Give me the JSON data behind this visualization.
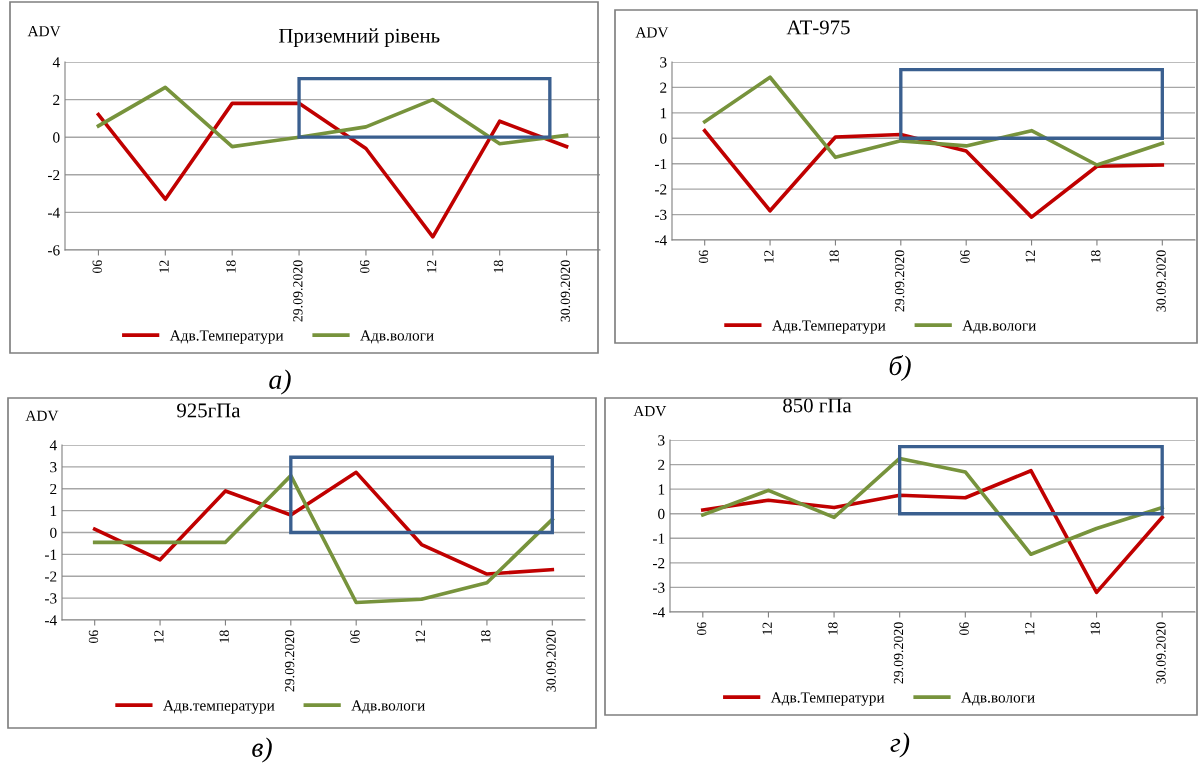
{
  "chart_data": [
    {
      "type": "line",
      "title": "Приземний рівень",
      "ylabel": "ADV",
      "categories": [
        "06",
        "12",
        "18",
        "29.09.2020",
        "06",
        "12",
        "18",
        "30.09.2020"
      ],
      "ylim": [
        -6,
        4
      ],
      "yticks": [
        -6,
        -4,
        -2,
        0,
        2,
        4
      ],
      "grid": "y",
      "legend": "bottom",
      "marker": "none",
      "line_style": "solid",
      "annotations": [
        "а)"
      ],
      "series": [
        {
          "name": "Адв.Температури",
          "color": "#c00000",
          "values": [
            1.2,
            -3.3,
            1.8,
            1.8,
            -0.6,
            -5.3,
            0.85,
            -0.5
          ]
        },
        {
          "name": "Адв.вологи",
          "color": "#77933c",
          "values": [
            0.6,
            2.65,
            -0.5,
            0.0,
            0.55,
            2.0,
            -0.35,
            0.1
          ]
        }
      ]
    },
    {
      "type": "line",
      "title": "АТ-975",
      "ylabel": "ADV",
      "categories": [
        "06",
        "12",
        "18",
        "29.09.2020",
        "06",
        "12",
        "18",
        "30.09.2020"
      ],
      "ylim": [
        -4,
        3
      ],
      "yticks": [
        -4,
        -3,
        -2,
        -1,
        0,
        1,
        2,
        3
      ],
      "grid": "y",
      "legend": "bottom",
      "marker": "none",
      "line_style": "solid",
      "annotations": [
        "б)"
      ],
      "series": [
        {
          "name": "Адв.Температури",
          "color": "#c00000",
          "values": [
            0.3,
            -2.85,
            0.05,
            0.15,
            -0.5,
            -3.1,
            -1.1,
            -1.05
          ]
        },
        {
          "name": "Адв.вологи",
          "color": "#77933c",
          "values": [
            0.65,
            2.4,
            -0.75,
            -0.1,
            -0.3,
            0.3,
            -1.05,
            -0.2
          ]
        }
      ]
    },
    {
      "type": "line",
      "title": "925гПа",
      "ylabel": "ADV",
      "categories": [
        "06",
        "12",
        "18",
        "29.09.2020",
        "06",
        "12",
        "18",
        "30.09.2020"
      ],
      "ylim": [
        -4,
        4
      ],
      "yticks": [
        -4,
        -3,
        -2,
        -1,
        0,
        1,
        2,
        3,
        4
      ],
      "grid": "y",
      "legend": "bottom",
      "marker": "none",
      "line_style": "solid",
      "annotations": [
        "в)"
      ],
      "series": [
        {
          "name": "Адв.температури",
          "color": "#c00000",
          "values": [
            0.15,
            -1.25,
            1.9,
            0.8,
            2.75,
            -0.55,
            -1.9,
            -1.7
          ]
        },
        {
          "name": "Адв.вологи",
          "color": "#77933c",
          "values": [
            -0.45,
            -0.45,
            -0.45,
            2.6,
            -3.2,
            -3.05,
            -2.3,
            0.6
          ]
        }
      ]
    },
    {
      "type": "line",
      "title": "850 гПа",
      "ylabel": "ADV",
      "categories": [
        "06",
        "12",
        "18",
        "29.09.2020",
        "06",
        "12",
        "18",
        "30.09.2020"
      ],
      "ylim": [
        -4,
        3
      ],
      "yticks": [
        -4,
        -3,
        -2,
        -1,
        0,
        1,
        2,
        3
      ],
      "grid": "y",
      "legend": "bottom",
      "marker": "none",
      "line_style": "solid",
      "annotations": [
        "г)"
      ],
      "series": [
        {
          "name": "Адв.Температури",
          "color": "#c00000",
          "values": [
            0.15,
            0.55,
            0.25,
            0.75,
            0.65,
            1.75,
            -3.2,
            -0.15
          ]
        },
        {
          "name": "Адв.вологи",
          "color": "#77933c",
          "values": [
            -0.05,
            0.95,
            -0.15,
            2.25,
            1.7,
            -1.65,
            -0.6,
            0.25
          ]
        }
      ]
    }
  ]
}
